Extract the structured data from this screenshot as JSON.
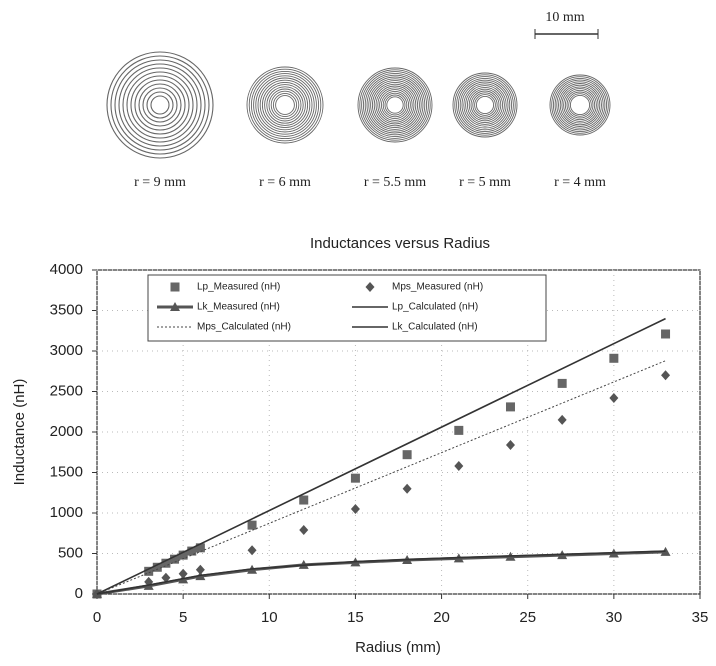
{
  "figure": {
    "scale_bar": "10 mm",
    "coils": [
      {
        "label": "r = 9 mm"
      },
      {
        "label": "r = 6 mm"
      },
      {
        "label": "r = 5.5 mm"
      },
      {
        "label": "r = 5 mm"
      },
      {
        "label": "r = 4 mm"
      }
    ]
  },
  "chart_data": {
    "type": "scatter",
    "title": "Inductances versus Radius",
    "x_label": "Radius (mm)",
    "y_label": "Inductance (nH)",
    "xlim": [
      0,
      35
    ],
    "xticks": [
      0,
      5,
      10,
      15,
      20,
      25,
      30,
      35
    ],
    "ylim": [
      0,
      4000
    ],
    "yticks": [
      0,
      500,
      1000,
      1500,
      2000,
      2500,
      3000,
      3500,
      4000
    ],
    "grid": true,
    "series": [
      {
        "name": "Lp_Measured (nH)",
        "color": "#666666",
        "marker": "square",
        "line": "none",
        "x": [
          0,
          3,
          3.5,
          4,
          4.5,
          5,
          5.5,
          6,
          9,
          12,
          15,
          18,
          21,
          24,
          27,
          30,
          33
        ],
        "values": [
          0,
          280,
          330,
          380,
          430,
          480,
          530,
          570,
          850,
          1160,
          1430,
          1720,
          2020,
          2310,
          2600,
          2910,
          3210
        ]
      },
      {
        "name": "Mps_Measured (nH)",
        "color": "#555555",
        "marker": "diamond",
        "line": "none",
        "x": [
          0,
          3,
          4,
          5,
          6,
          9,
          12,
          15,
          18,
          21,
          24,
          27,
          30,
          33
        ],
        "values": [
          0,
          150,
          200,
          250,
          300,
          540,
          790,
          1050,
          1300,
          1580,
          1840,
          2150,
          2420,
          2700
        ]
      },
      {
        "name": "Lk_Measured (nH)",
        "color": "#555555",
        "marker": "triangle",
        "line": "thick",
        "x": [
          0,
          3,
          5,
          6,
          9,
          12,
          15,
          18,
          21,
          24,
          27,
          30,
          33
        ],
        "values": [
          0,
          100,
          180,
          220,
          300,
          360,
          390,
          420,
          440,
          460,
          480,
          500,
          520
        ]
      },
      {
        "name": "Lp_Calculated (nH)",
        "color": "#333333",
        "marker": "none",
        "line": "solid",
        "x": [
          0,
          33
        ],
        "values": [
          0,
          3400
        ]
      },
      {
        "name": "Mps_Calculated (nH)",
        "color": "#444444",
        "marker": "none",
        "line": "dotted",
        "x": [
          0,
          33
        ],
        "values": [
          0,
          2880
        ]
      },
      {
        "name": "Lk_Calculated (nH)",
        "color": "#333333",
        "marker": "none",
        "line": "solid",
        "x": [
          0,
          3,
          6,
          9,
          15,
          21,
          27,
          33
        ],
        "values": [
          0,
          110,
          230,
          310,
          400,
          450,
          490,
          530
        ]
      }
    ]
  }
}
